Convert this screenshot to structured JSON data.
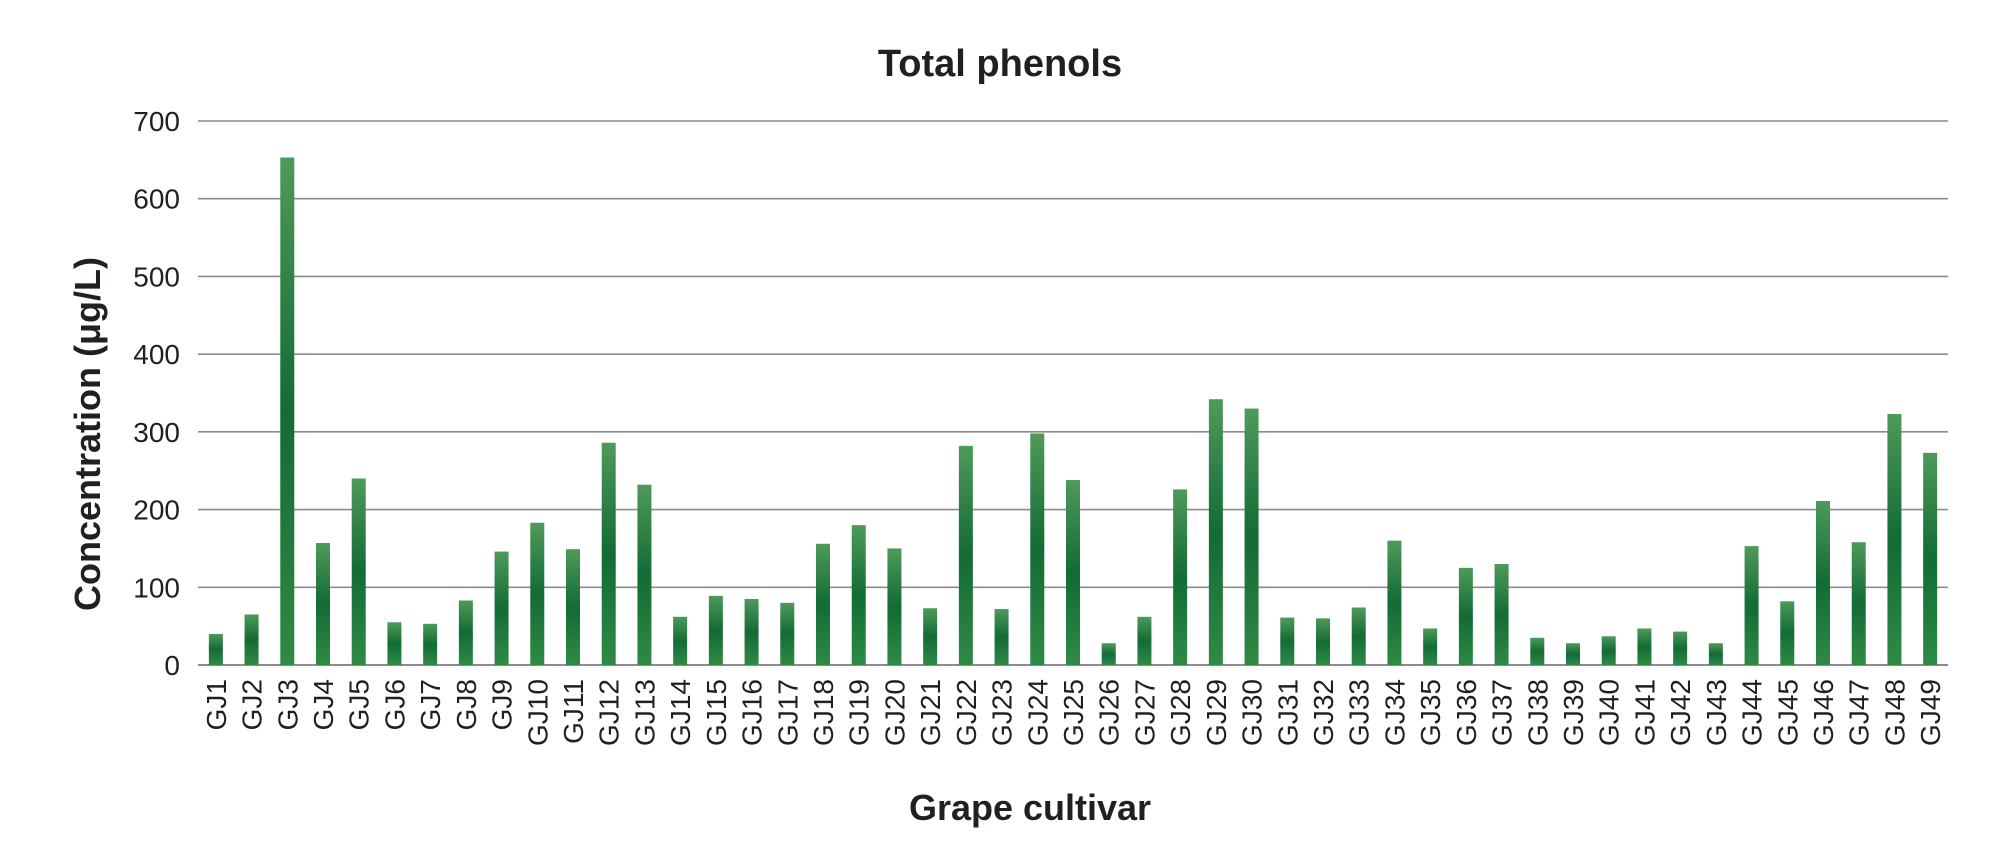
{
  "chart_data": {
    "type": "bar",
    "title": "Total phenols",
    "xlabel": "Grape cultivar",
    "ylabel": "Concentration (μg/L)",
    "ylim": [
      0,
      700
    ],
    "yticks": [
      0,
      100,
      200,
      300,
      400,
      500,
      600,
      700
    ],
    "grid": true,
    "legend": "none",
    "bar_color": "#1b6b35",
    "categories": [
      "GJ1",
      "GJ2",
      "GJ3",
      "GJ4",
      "GJ5",
      "GJ6",
      "GJ7",
      "GJ8",
      "GJ9",
      "GJ10",
      "GJ11",
      "GJ12",
      "GJ13",
      "GJ14",
      "GJ15",
      "GJ16",
      "GJ17",
      "GJ18",
      "GJ19",
      "GJ20",
      "GJ21",
      "GJ22",
      "GJ23",
      "GJ24",
      "GJ25",
      "GJ26",
      "GJ27",
      "GJ28",
      "GJ29",
      "GJ30",
      "GJ31",
      "GJ32",
      "GJ33",
      "GJ34",
      "GJ35",
      "GJ36",
      "GJ37",
      "GJ38",
      "GJ39",
      "GJ40",
      "GJ41",
      "GJ42",
      "GJ43",
      "GJ44",
      "GJ45",
      "GJ46",
      "GJ47",
      "GJ48",
      "GJ49"
    ],
    "values": [
      40,
      65,
      653,
      157,
      240,
      55,
      53,
      83,
      146,
      183,
      149,
      286,
      232,
      62,
      89,
      85,
      80,
      156,
      180,
      150,
      73,
      282,
      72,
      298,
      238,
      28,
      62,
      226,
      342,
      330,
      61,
      60,
      74,
      160,
      47,
      125,
      130,
      35,
      28,
      37,
      47,
      43,
      28,
      153,
      82,
      211,
      158,
      323,
      273
    ]
  }
}
